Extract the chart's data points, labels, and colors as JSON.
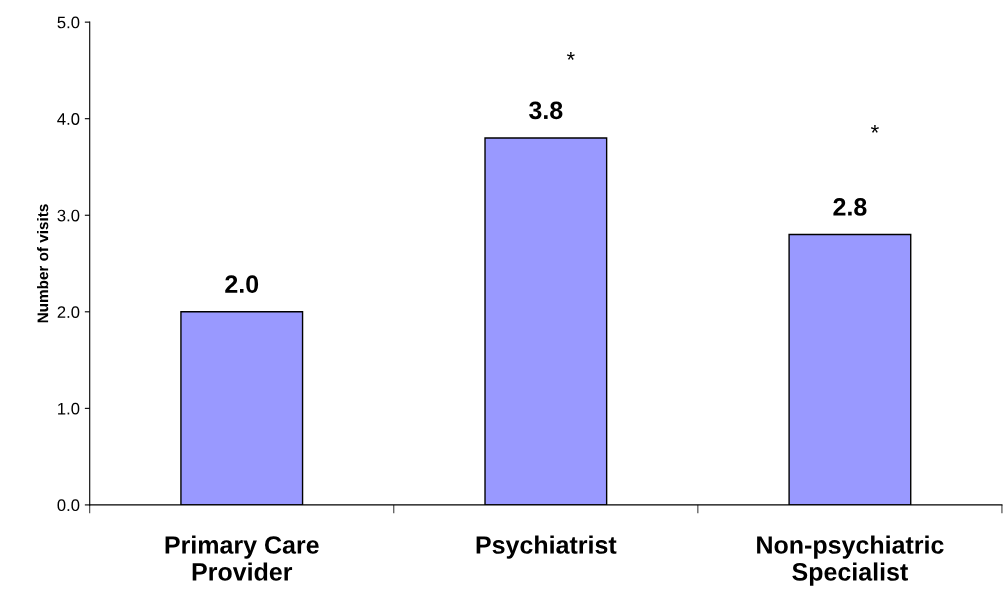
{
  "chart_data": {
    "type": "bar",
    "categories": [
      "Primary Care\nProvider",
      "Psychiatrist",
      "Non-psychiatric\nSpecialist"
    ],
    "values": [
      2.0,
      3.8,
      2.8
    ],
    "color": "#9999ff",
    "ylabel": "Number of visits",
    "ylim": [
      0,
      5
    ],
    "yticks": [
      {
        "value": 0,
        "label": "0.0"
      },
      {
        "value": 1,
        "label": "1.0"
      },
      {
        "value": 2,
        "label": "2.0"
      },
      {
        "value": 3,
        "label": "3.0"
      },
      {
        "value": 4,
        "label": "4.0"
      },
      {
        "value": 5,
        "label": "5.0"
      }
    ],
    "value_labels": [
      "2.0",
      "3.8",
      "2.8"
    ],
    "grid": false,
    "legend": false,
    "annotations": [
      "*",
      "*"
    ]
  }
}
